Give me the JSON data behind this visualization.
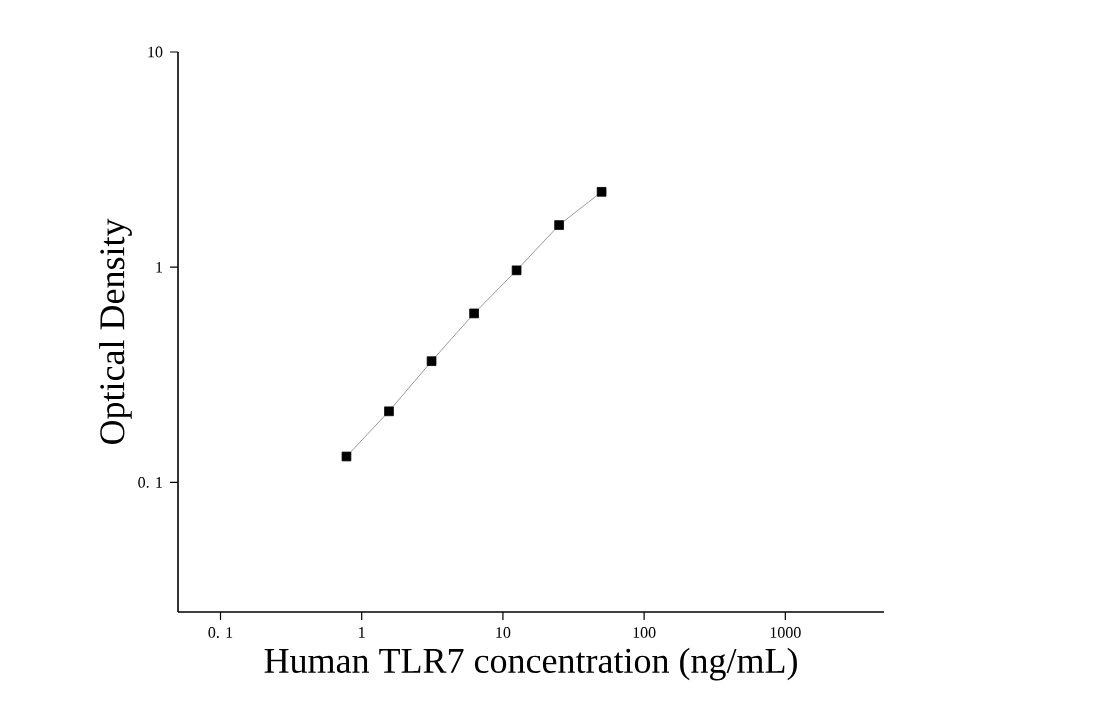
{
  "chart_data": {
    "type": "line",
    "xlabel": "Human TLR7 concentration (ng/mL)",
    "ylabel": "Optical Density",
    "log": "xy",
    "marker": "square",
    "line_style": "solid",
    "x": [
      0.78,
      1.56,
      3.125,
      6.25,
      12.5,
      25,
      50
    ],
    "series": [
      {
        "color": "#000000",
        "values": [
          0.132,
          0.214,
          0.366,
          0.61,
          0.967,
          1.57,
          2.24
        ]
      }
    ],
    "xlim": [
      0.05,
      5000
    ],
    "ylim": [
      0.025,
      10
    ],
    "xticks": [
      {
        "value": 0.1,
        "label": "0. 1"
      },
      1,
      10,
      100,
      1000
    ],
    "yticks": [
      {
        "value": 0.1,
        "label": "0. 1"
      },
      1,
      10
    ]
  }
}
